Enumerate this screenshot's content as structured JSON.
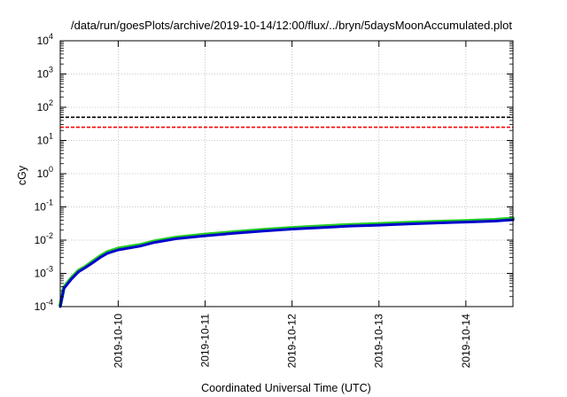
{
  "chart_data": {
    "type": "line",
    "title": "/data/run/goesPlots/archive/2019-10-14/12:00/flux/../bryn/5daysMoonAccumulated.plot",
    "xlabel": "Coordinated Universal Time (UTC)",
    "ylabel": "cGy",
    "yscale": "log",
    "ylim": [
      0.0001,
      10000
    ],
    "xlim": [
      "2019-10-09T08:00",
      "2019-10-14T13:00"
    ],
    "grid": true,
    "x_ticks": [
      "2019-10-10",
      "2019-10-11",
      "2019-10-12",
      "2019-10-13",
      "2019-10-14"
    ],
    "y_ticks": [
      {
        "base": "10",
        "exp": "-4"
      },
      {
        "base": "10",
        "exp": "-3"
      },
      {
        "base": "10",
        "exp": "-2"
      },
      {
        "base": "10",
        "exp": "-1"
      },
      {
        "base": "10",
        "exp": "0"
      },
      {
        "base": "10",
        "exp": "1"
      },
      {
        "base": "10",
        "exp": "2"
      },
      {
        "base": "10",
        "exp": "3"
      },
      {
        "base": "10",
        "exp": "4"
      }
    ],
    "thresholds": [
      {
        "value": 50,
        "color": "#000000",
        "style": "dashed"
      },
      {
        "value": 25,
        "color": "#ff0000",
        "style": "dashed"
      }
    ],
    "series": [
      {
        "color": "#22cc22",
        "x": [
          "2019-10-09T08:00",
          "2019-10-09T09:00",
          "2019-10-09T11:00",
          "2019-10-09T13:00",
          "2019-10-09T15:00",
          "2019-10-09T17:00",
          "2019-10-09T19:00",
          "2019-10-09T21:00",
          "2019-10-10T00:00",
          "2019-10-10T06:00",
          "2019-10-10T10:00",
          "2019-10-10T16:00",
          "2019-10-11T00:00",
          "2019-10-11T08:00",
          "2019-10-11T16:00",
          "2019-10-12T00:00",
          "2019-10-12T08:00",
          "2019-10-12T16:00",
          "2019-10-13T00:00",
          "2019-10-13T08:00",
          "2019-10-13T16:00",
          "2019-10-14T00:00",
          "2019-10-14T08:00",
          "2019-10-14T13:00"
        ],
        "y": [
          0.00011,
          0.00038,
          0.00072,
          0.0012,
          0.0016,
          0.0023,
          0.0033,
          0.0044,
          0.0056,
          0.0072,
          0.0093,
          0.012,
          0.0148,
          0.0175,
          0.0205,
          0.0235,
          0.026,
          0.029,
          0.031,
          0.0335,
          0.036,
          0.038,
          0.041,
          0.045
        ]
      },
      {
        "color": "#0000cc",
        "x": [
          "2019-10-09T08:00",
          "2019-10-09T09:00",
          "2019-10-09T11:00",
          "2019-10-09T13:00",
          "2019-10-09T15:00",
          "2019-10-09T17:00",
          "2019-10-09T19:00",
          "2019-10-09T21:00",
          "2019-10-10T00:00",
          "2019-10-10T06:00",
          "2019-10-10T10:00",
          "2019-10-10T16:00",
          "2019-10-11T00:00",
          "2019-10-11T08:00",
          "2019-10-11T16:00",
          "2019-10-12T00:00",
          "2019-10-12T08:00",
          "2019-10-12T16:00",
          "2019-10-13T00:00",
          "2019-10-13T08:00",
          "2019-10-13T16:00",
          "2019-10-14T00:00",
          "2019-10-14T08:00",
          "2019-10-14T13:00"
        ],
        "y": [
          0.0001,
          0.00035,
          0.00066,
          0.0011,
          0.0015,
          0.0021,
          0.003,
          0.004,
          0.0051,
          0.0066,
          0.0085,
          0.011,
          0.0135,
          0.016,
          0.0188,
          0.0215,
          0.0238,
          0.0265,
          0.0283,
          0.0305,
          0.033,
          0.035,
          0.0375,
          0.041
        ]
      }
    ]
  }
}
